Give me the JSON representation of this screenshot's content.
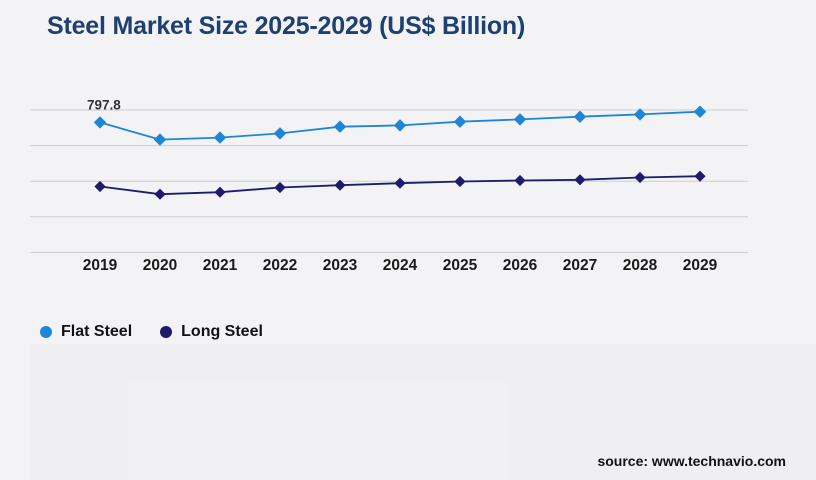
{
  "header": {
    "title": "Steel Market Size 2025-2029 (US$ Billion)"
  },
  "chart_data": {
    "type": "line",
    "title": "Steel Market Size 2025-2029 (US$ Billion)",
    "categories": [
      "2019",
      "2020",
      "2021",
      "2022",
      "2023",
      "2024",
      "2025",
      "2026",
      "2027",
      "2028",
      "2029"
    ],
    "series": [
      {
        "name": "Flat Steel",
        "color": "#1e86d4",
        "marker": "diamond",
        "values": [
          797.8,
          725.1,
          733.5,
          751.6,
          779.7,
          785.2,
          800.7,
          810.4,
          821.7,
          831.4,
          842.7
        ]
      },
      {
        "name": "Long Steel",
        "color": "#1e1b6d",
        "marker": "diamond",
        "values": [
          527.7,
          495.4,
          503.8,
          523.5,
          533.2,
          541.6,
          548.7,
          552.9,
          555.9,
          565.5,
          571.0
        ]
      }
    ],
    "annotations": [
      {
        "text": "797.8",
        "series": "Flat Steel",
        "category": "2019"
      }
    ],
    "ylim": [
      250,
      850
    ],
    "gridline_step": 150,
    "grid": "horizontal-only",
    "y_axis_labels_visible": false,
    "legend_position": "bottom-left",
    "xlabel": "",
    "ylabel": ""
  },
  "legend": {
    "items": [
      {
        "label": "Flat Steel",
        "color": "#1e86d4"
      },
      {
        "label": "Long Steel",
        "color": "#1e1b6d"
      }
    ]
  },
  "footer": {
    "source": "source: www.technavio.com"
  },
  "colors": {
    "background": "#f3f3f5",
    "gridline": "#cdced2",
    "title": "#1e4070",
    "axis_label": "#1a1a1a"
  }
}
